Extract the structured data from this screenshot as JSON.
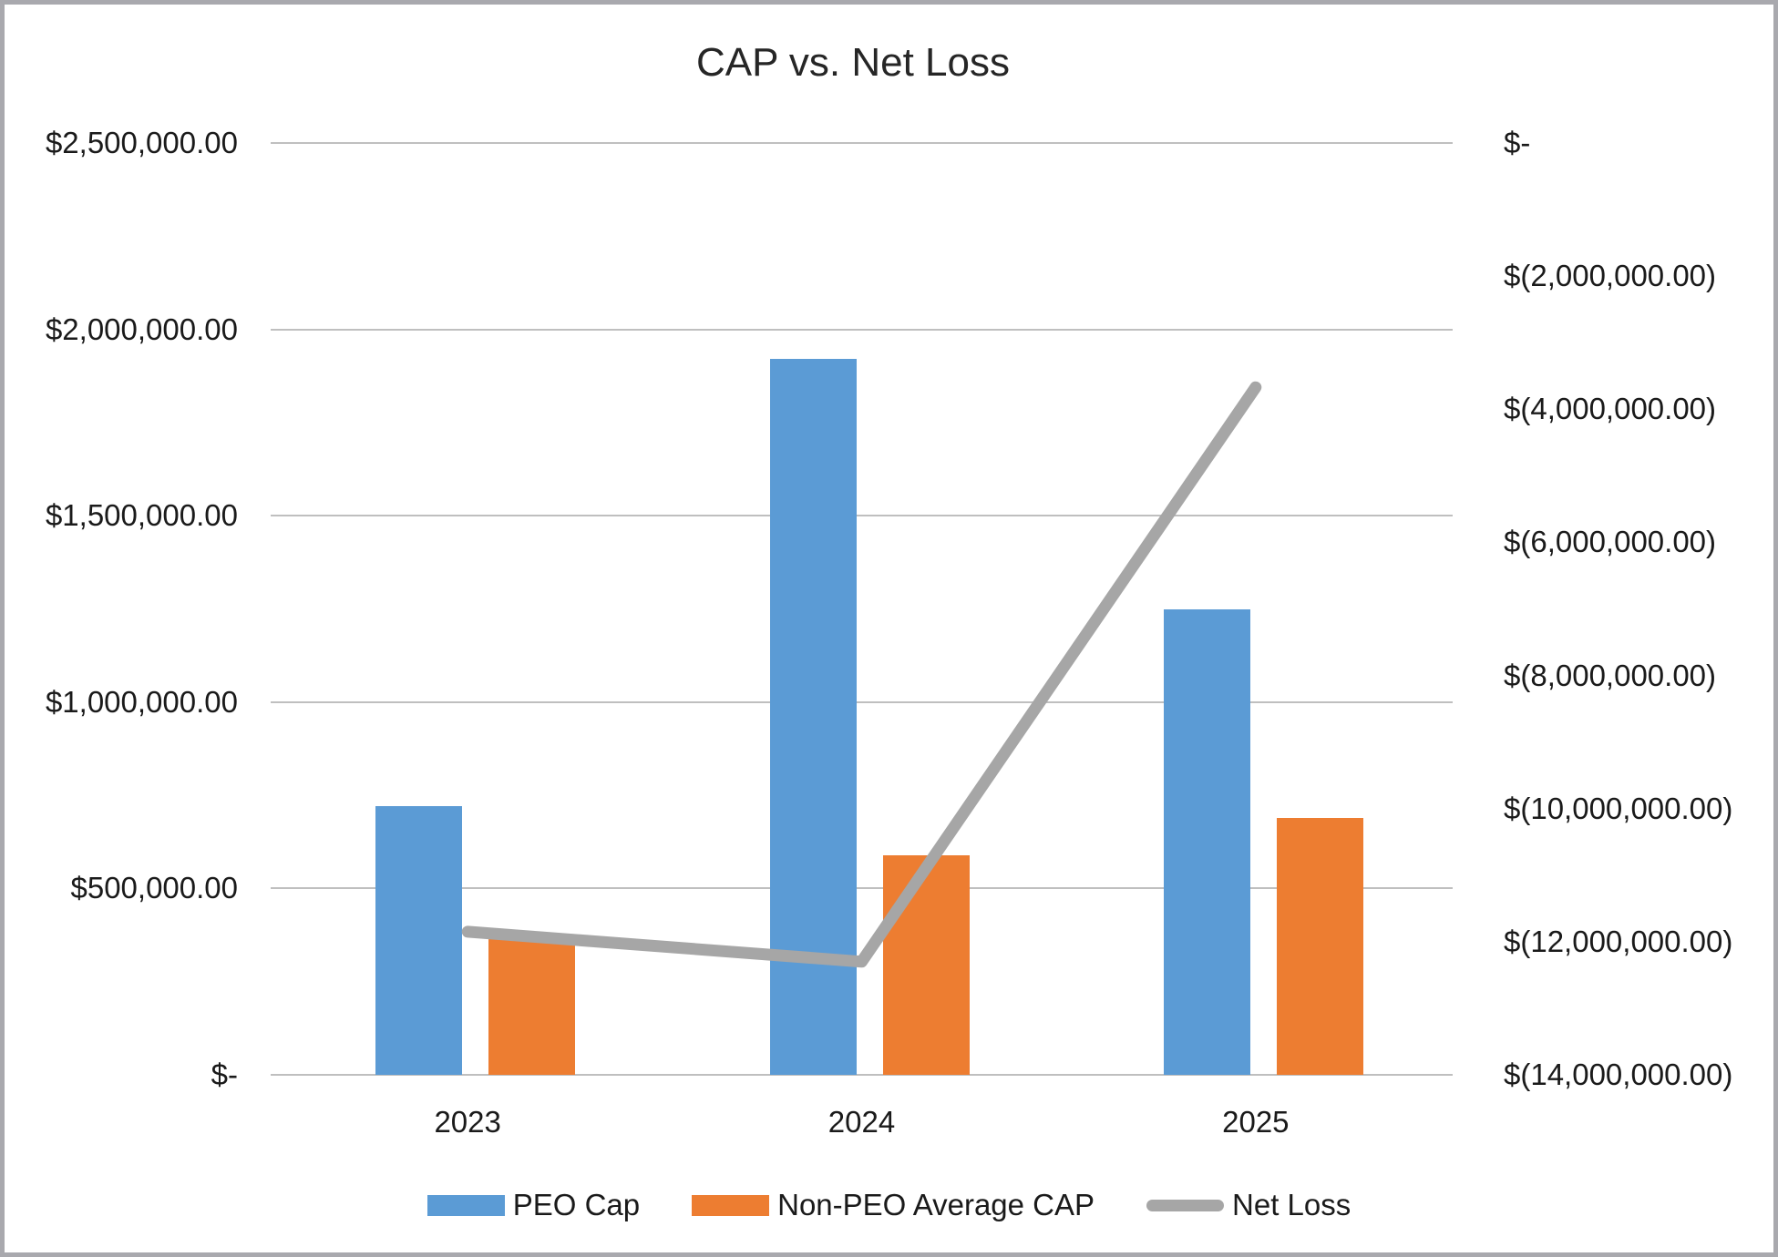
{
  "title": "CAP vs. Net Loss",
  "palette": {
    "background": "#ffffff",
    "border": "#a9a9ae",
    "gridline": "#bfbfbf",
    "text": "#1a1a1a",
    "peo_cap_blue": "#5B9BD5",
    "non_peo_orange": "#ED7D31",
    "net_loss_gray": "#A6A6A6"
  },
  "chart_data": {
    "type": "combo-bar-line",
    "title": "CAP vs. Net Loss",
    "categories": [
      "2023",
      "2024",
      "2025"
    ],
    "series": [
      {
        "name": "PEO Cap",
        "type": "bar",
        "axis": "left",
        "color": "#5B9BD5",
        "values": [
          720000,
          1920000,
          1250000
        ]
      },
      {
        "name": "Non-PEO Average CAP",
        "type": "bar",
        "axis": "left",
        "color": "#ED7D31",
        "values": [
          370000,
          590000,
          690000
        ]
      },
      {
        "name": "Net Loss",
        "type": "line",
        "axis": "right",
        "color": "#A6A6A6",
        "values": [
          -11850000,
          -12300000,
          -3670000
        ]
      }
    ],
    "left_axis": {
      "min": 0,
      "max": 2500000,
      "step": 500000,
      "tick_labels": [
        "$-",
        "$500,000.00",
        "$1,000,000.00",
        "$1,500,000.00",
        "$2,000,000.00",
        "$2,500,000.00"
      ]
    },
    "right_axis": {
      "min": -14000000,
      "max": 0,
      "step": 2000000,
      "tick_labels": [
        "$-",
        "$(2,000,000.00)",
        "$(4,000,000.00)",
        "$(6,000,000.00)",
        "$(8,000,000.00)",
        "$(10,000,000.00)",
        "$(12,000,000.00)",
        "$(14,000,000.00)"
      ]
    },
    "grid": true,
    "legend": [
      "PEO Cap",
      "Non-PEO Average CAP",
      "Net Loss"
    ],
    "legend_position": "bottom"
  }
}
